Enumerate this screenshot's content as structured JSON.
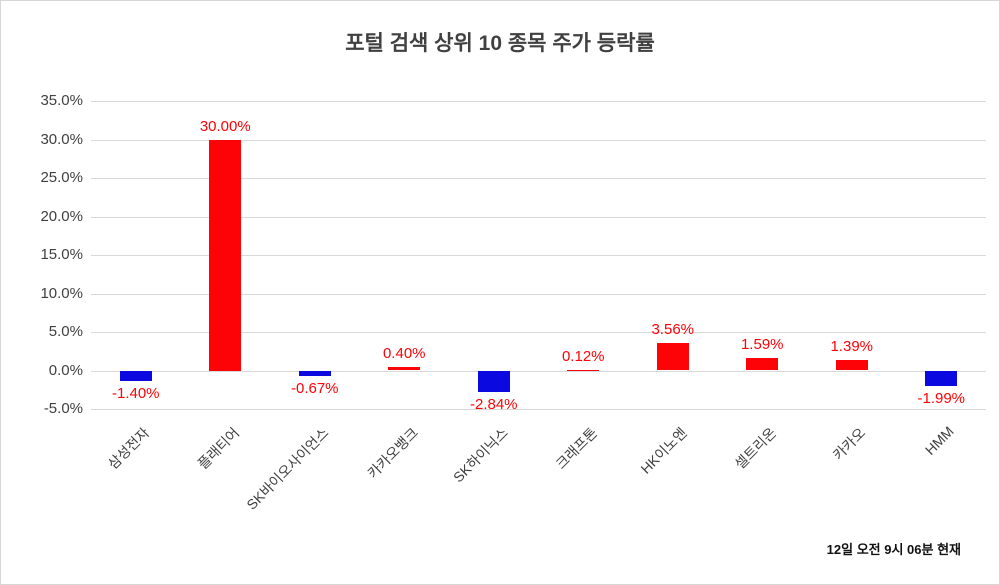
{
  "title": "포털 검색 상위 10 종목 주가 등락률",
  "footer_note": "12일 오전 9시 06분 현재",
  "colors": {
    "positive": "#fd0206",
    "negative": "#0a09e0",
    "value_label": "#fd0206",
    "grid": "#d9d9d9",
    "axis_text": "#404040",
    "title_text": "#404040"
  },
  "chart_data": {
    "type": "bar",
    "title": "포털 검색 상위 10 종목 주가 등락률",
    "categories": [
      "삼성전자",
      "플래티어",
      "SK바이오사이언스",
      "카카오뱅크",
      "SK하이닉스",
      "크래프톤",
      "HK이노엔",
      "셀트리온",
      "카카오",
      "HMM"
    ],
    "values": [
      -1.4,
      30.0,
      -0.67,
      0.4,
      -2.84,
      0.12,
      3.56,
      1.59,
      1.39,
      -1.99
    ],
    "value_labels": [
      "-1.40%",
      "30.00%",
      "-0.67%",
      "0.40%",
      "-2.84%",
      "0.12%",
      "3.56%",
      "1.59%",
      "1.39%",
      "-1.99%"
    ],
    "xlabel": "",
    "ylabel": "",
    "ylim": [
      -5,
      35
    ],
    "ytick_step": 5,
    "ytick_labels": [
      "35.0%",
      "30.0%",
      "25.0%",
      "20.0%",
      "15.0%",
      "10.0%",
      "5.0%",
      "0.0%",
      "-5.0%"
    ],
    "grid": true,
    "legend": false,
    "annotation": "12일 오전 9시 06분 현재"
  }
}
